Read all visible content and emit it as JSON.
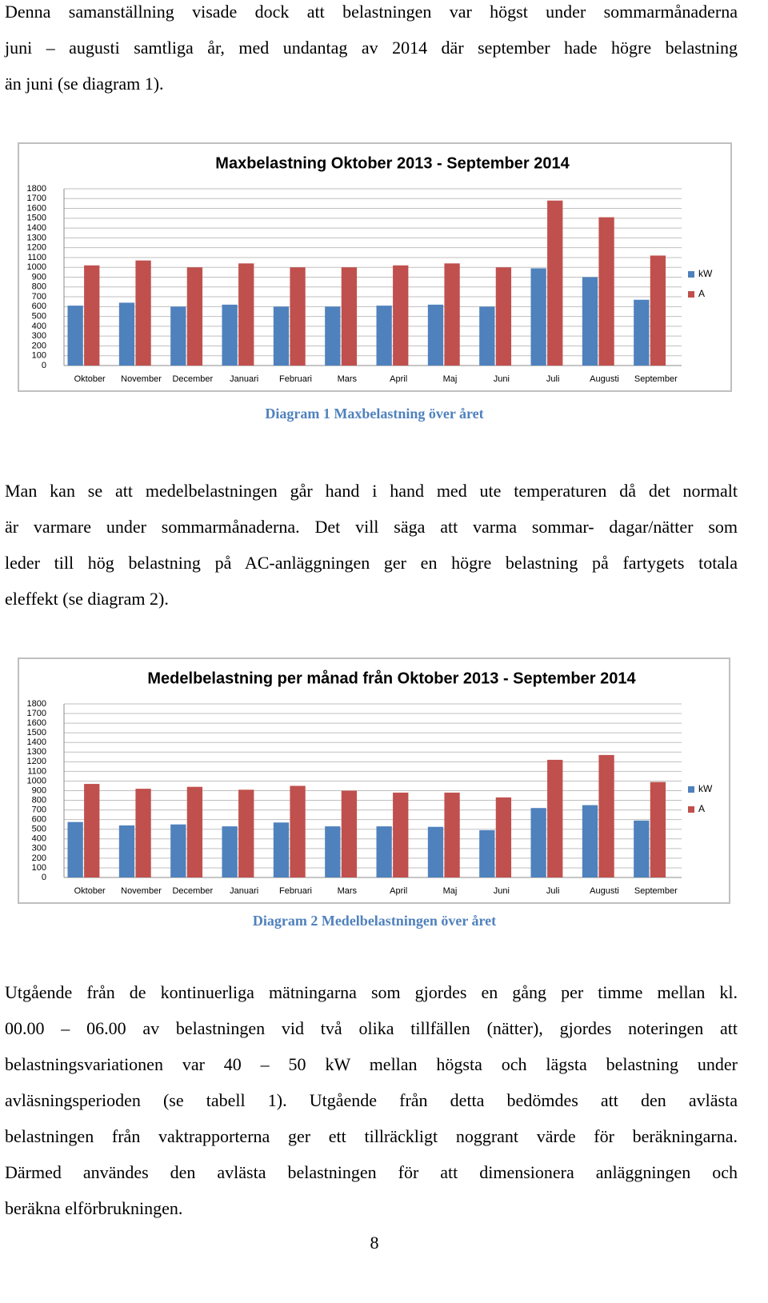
{
  "paragraphs": [
    {
      "lines": [
        "Denna samanställning visade dock att belastningen var högst under sommarmånaderna",
        "juni – augusti samtliga år, med undantag av 2014 där september hade högre belastning",
        "än juni (se diagram 1)."
      ]
    },
    {
      "lines": [
        "Man kan se att medelbelastningen går hand i hand med ute temperaturen då det normalt",
        "är varmare under sommarmånaderna. Det vill säga att varma sommar- dagar/nätter som",
        "leder till hög belastning på AC-anläggningen ger en högre belastning på fartygets totala",
        "eleffekt (se diagram 2)."
      ]
    },
    {
      "lines": [
        "Utgående från de kontinuerliga mätningarna som gjordes en gång per timme mellan kl.",
        "00.00 – 06.00 av belastningen vid två olika tillfällen (nätter), gjordes noteringen att",
        "belastningsvariationen var 40 – 50 kW mellan högsta och lägsta belastning under",
        "avläsningsperioden (se tabell 1). Utgående från detta bedömdes att den avlästa",
        "belastningen från vaktrapporterna ger ett tillräckligt noggrant värde för beräkningarna.",
        "Därmed användes den avlästa belastningen för att dimensionera anläggningen och",
        "beräkna elförbrukningen."
      ]
    }
  ],
  "captions": [
    "Diagram 1 Maxbelastning över året",
    "Diagram 2 Medelbelastningen över året"
  ],
  "page_number": "8",
  "chart_data": [
    {
      "type": "bar",
      "title": "Maxbelastning Oktober 2013 - September 2014",
      "categories": [
        "Oktober",
        "November",
        "December",
        "Januari",
        "Februari",
        "Mars",
        "April",
        "Maj",
        "Juni",
        "Juli",
        "Augusti",
        "September"
      ],
      "series": [
        {
          "name": "kW",
          "color": "#4f81bd",
          "values": [
            610,
            640,
            600,
            620,
            600,
            600,
            610,
            620,
            600,
            990,
            900,
            670
          ]
        },
        {
          "name": "A",
          "color": "#c0504d",
          "values": [
            1020,
            1070,
            1000,
            1040,
            1000,
            1000,
            1020,
            1040,
            1000,
            1680,
            1510,
            1120
          ]
        }
      ],
      "ylim": [
        0,
        1800
      ],
      "yticks": [
        0,
        100,
        200,
        300,
        400,
        500,
        600,
        700,
        800,
        900,
        1000,
        1100,
        1200,
        1300,
        1400,
        1500,
        1600,
        1700,
        1800
      ],
      "grid": true,
      "legend": "right"
    },
    {
      "type": "bar",
      "title": "Medelbelastning per månad från Oktober 2013 - September 2014",
      "categories": [
        "Oktober",
        "November",
        "December",
        "Januari",
        "Februari",
        "Mars",
        "April",
        "Maj",
        "Juni",
        "Juli",
        "Augusti",
        "September"
      ],
      "series": [
        {
          "name": "kW",
          "color": "#4f81bd",
          "values": [
            575,
            540,
            550,
            530,
            570,
            530,
            530,
            525,
            490,
            720,
            750,
            590
          ]
        },
        {
          "name": "A",
          "color": "#c0504d",
          "values": [
            970,
            920,
            940,
            910,
            950,
            900,
            880,
            880,
            830,
            1220,
            1270,
            990
          ]
        }
      ],
      "ylim": [
        0,
        1800
      ],
      "yticks": [
        0,
        100,
        200,
        300,
        400,
        500,
        600,
        700,
        800,
        900,
        1000,
        1100,
        1200,
        1300,
        1400,
        1500,
        1600,
        1700,
        1800
      ],
      "grid": true,
      "legend": "right"
    }
  ]
}
